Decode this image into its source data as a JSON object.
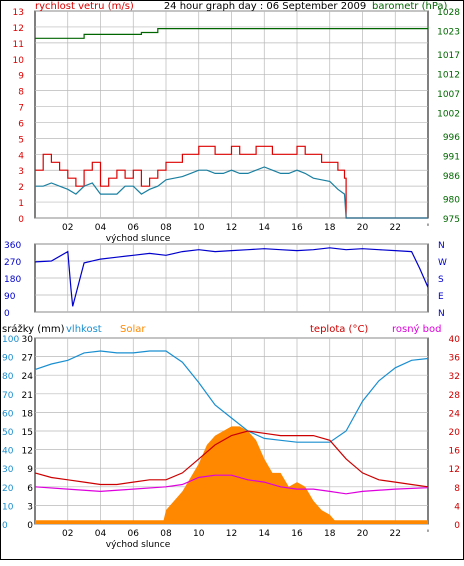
{
  "title": "24 hour graph day : 06 September 2009",
  "colors": {
    "wind": "#dd0000",
    "wind_avg": "#1a7fa0",
    "baro": "#006600",
    "dir": "#0000cc",
    "hum": "#1a8fd0",
    "temp": "#cc0000",
    "dew": "#dd00dd",
    "solar": "#ff8800",
    "rain": "#ff8800",
    "grid": "#b8b8b8",
    "axis_blue": "#0000cc"
  },
  "hour_ticks": [
    "02",
    "04",
    "06",
    "08",
    "10",
    "12",
    "14",
    "16",
    "18",
    "20",
    "22",
    "'"
  ],
  "sunrise_label": "východ slunce",
  "chart_data": [
    {
      "type": "line",
      "id": "wind-pressure",
      "title": "24 hour graph day : 06 September 2009",
      "ylabel": "rychlost vetru (m/s)",
      "ylabel2": "barometr (hPa)",
      "ylim": [
        0,
        13
      ],
      "y_ticks": [
        "0",
        "1",
        "2",
        "3",
        "4",
        "5",
        "6",
        "7",
        "8",
        "9",
        "10",
        "11",
        "12",
        "13"
      ],
      "y2_ticks": [
        "975",
        "980",
        "986",
        "991",
        "996",
        "1002",
        "1007",
        "1012",
        "1017",
        "1023",
        "1028"
      ],
      "y2lim": [
        975,
        1028
      ],
      "series": [
        {
          "name": "wind_gust",
          "x": [
            0,
            0.5,
            1,
            1.5,
            2,
            2.5,
            3,
            3.5,
            4,
            4.5,
            5,
            5.5,
            6,
            6.5,
            7,
            7.5,
            8,
            8.5,
            9,
            9.5,
            10,
            10.5,
            11,
            11.5,
            12,
            12.5,
            13,
            13.5,
            14,
            14.5,
            15,
            15.5,
            16,
            16.5,
            17,
            17.5,
            18,
            18.5,
            18.9,
            19,
            24
          ],
          "values": [
            3,
            4,
            3.5,
            3,
            2.5,
            2,
            3,
            3.5,
            2,
            2.5,
            3,
            2.5,
            3,
            2,
            2.5,
            3,
            3.5,
            3.5,
            4,
            4,
            4.5,
            4.5,
            4,
            4,
            4.5,
            4,
            4,
            4.5,
            4.5,
            4,
            4,
            4,
            4.5,
            4,
            4,
            3.5,
            3.5,
            3,
            2.5,
            0,
            0
          ]
        },
        {
          "name": "wind_avg",
          "x": [
            0,
            0.5,
            1,
            1.5,
            2,
            2.5,
            3,
            3.5,
            4,
            4.5,
            5,
            5.5,
            6,
            6.5,
            7,
            7.5,
            8,
            8.5,
            9,
            9.5,
            10,
            10.5,
            11,
            11.5,
            12,
            12.5,
            13,
            13.5,
            14,
            14.5,
            15,
            15.5,
            16,
            16.5,
            17,
            17.5,
            18,
            18.5,
            18.9,
            19,
            24
          ],
          "values": [
            2,
            2,
            2.2,
            2,
            1.8,
            1.5,
            2,
            2.2,
            1.5,
            1.5,
            1.5,
            2,
            2,
            1.5,
            1.8,
            2,
            2.4,
            2.5,
            2.6,
            2.8,
            3,
            3,
            2.8,
            2.8,
            3,
            2.8,
            2.8,
            3,
            3.2,
            3,
            2.8,
            2.8,
            3,
            2.8,
            2.5,
            2.4,
            2.3,
            1.8,
            1.5,
            0,
            0
          ]
        },
        {
          "name": "barometer",
          "x": [
            0,
            2,
            3,
            5,
            6.5,
            7.5,
            9,
            12,
            13,
            16.5,
            18,
            20,
            22,
            24
          ],
          "values": [
            1021,
            1021,
            1022,
            1022,
            1022.5,
            1023.5,
            1023.5,
            1023.5,
            1023.5,
            1023.5,
            1023.5,
            1023.5,
            1023.5,
            1024
          ]
        }
      ]
    },
    {
      "type": "line",
      "id": "wind-direction",
      "ylim": [
        0,
        360
      ],
      "y_ticks": [
        "360",
        "270",
        "180",
        "90",
        "0"
      ],
      "compass": [
        "N",
        "W",
        "S",
        "E",
        "N"
      ],
      "series": [
        {
          "name": "direction",
          "x": [
            0,
            1,
            2,
            2.2,
            2.3,
            3,
            4,
            5,
            6,
            7,
            8,
            9,
            10,
            11,
            12,
            13,
            14,
            15,
            16,
            17,
            18,
            19,
            20,
            21,
            22,
            23,
            23.5,
            24
          ],
          "values": [
            265,
            270,
            320,
            120,
            30,
            260,
            280,
            290,
            300,
            310,
            300,
            320,
            330,
            320,
            325,
            330,
            335,
            330,
            325,
            330,
            340,
            330,
            335,
            330,
            325,
            320,
            230,
            130
          ]
        }
      ]
    },
    {
      "type": "line",
      "id": "temp-humidity-solar",
      "ylim": [
        0,
        30
      ],
      "left_ticks_rain": [
        "0",
        "3",
        "6",
        "9",
        "12",
        "15",
        "18",
        "21",
        "24",
        "27",
        "30"
      ],
      "left_ticks_hum": [
        "0",
        "10",
        "20",
        "30",
        "40",
        "50",
        "60",
        "70",
        "80",
        "90",
        "100"
      ],
      "right_ticks_temp": [
        "0",
        "4",
        "8",
        "12",
        "16",
        "20",
        "24",
        "28",
        "32",
        "36",
        "40"
      ],
      "labels": [
        "srážky (mm)",
        "vlhkost",
        "Solar",
        "teplota (°C)",
        "rosný bod"
      ],
      "series": [
        {
          "name": "humidity",
          "x": [
            0,
            1,
            2,
            3,
            4,
            5,
            6,
            7,
            8,
            8.5,
            9,
            10,
            11,
            12,
            13,
            14,
            15,
            16,
            17,
            18,
            19,
            20,
            21,
            22,
            23,
            24
          ],
          "values": [
            83,
            86,
            88,
            92,
            93,
            92,
            92,
            93,
            93,
            90,
            87,
            76,
            64,
            57,
            50,
            46,
            45,
            44,
            44,
            44,
            50,
            66,
            77,
            84,
            88,
            89
          ]
        },
        {
          "name": "temperature",
          "x": [
            0,
            1,
            2,
            3,
            4,
            5,
            6,
            7,
            8,
            9,
            10,
            11,
            12,
            13,
            14,
            15,
            16,
            17,
            18,
            19,
            20,
            21,
            22,
            23,
            24
          ],
          "values": [
            11,
            10,
            9.5,
            9,
            8.5,
            8.5,
            9,
            9.5,
            9.5,
            11,
            14,
            17,
            19,
            20,
            19.5,
            19,
            19,
            19,
            18,
            14,
            11,
            9.5,
            9,
            8.5,
            8
          ]
        },
        {
          "name": "dew_point",
          "x": [
            0,
            2,
            4,
            6,
            8,
            9,
            10,
            11,
            12,
            13,
            14,
            15,
            16,
            17,
            18,
            19,
            20,
            22,
            24
          ],
          "values": [
            8,
            7.5,
            7,
            7.5,
            8,
            8.5,
            10,
            10.5,
            10.5,
            9.5,
            9,
            8,
            7.5,
            7.5,
            7,
            6.5,
            7,
            7.5,
            7.8
          ]
        },
        {
          "name": "solar",
          "x": [
            0,
            7.8,
            8,
            9,
            10,
            10.5,
            11,
            11.5,
            12,
            12.5,
            13,
            13.5,
            14,
            14.5,
            15,
            15.5,
            16,
            16.5,
            17,
            17.5,
            18,
            18.5,
            24
          ],
          "values": [
            0,
            0,
            3,
            7,
            13,
            17,
            19,
            20,
            21,
            21,
            20,
            18,
            14,
            11,
            11,
            8,
            9,
            8,
            5,
            3,
            2,
            0,
            0
          ]
        },
        {
          "name": "rain",
          "x": [
            0,
            24
          ],
          "values": [
            0.6,
            0.6
          ]
        }
      ]
    }
  ]
}
